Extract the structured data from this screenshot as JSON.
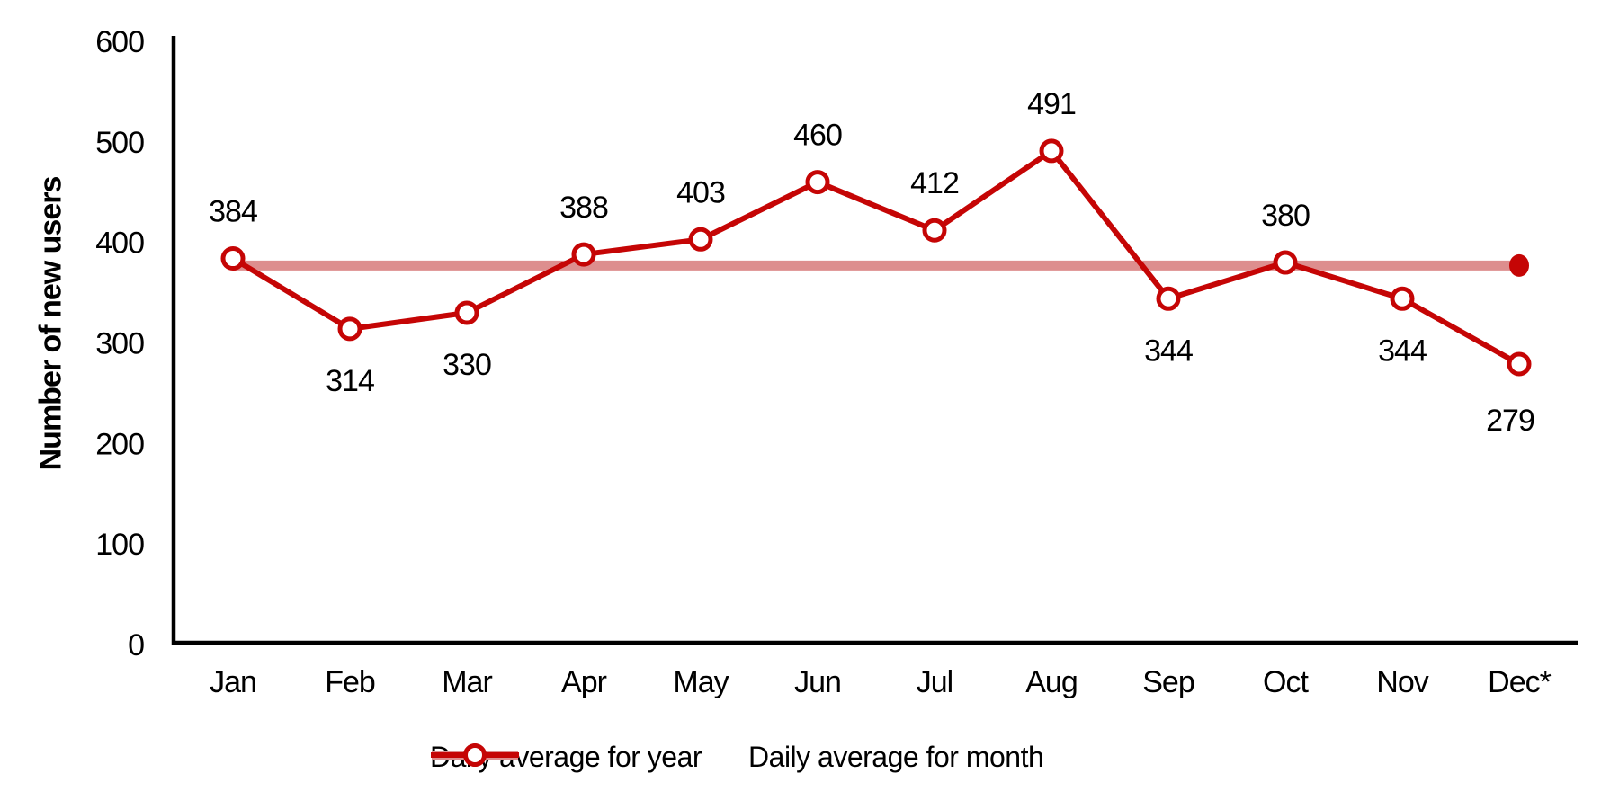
{
  "chart_data": {
    "type": "line",
    "title": "",
    "xlabel": "",
    "ylabel": "Number of new users",
    "categories": [
      "Jan",
      "Feb",
      "Mar",
      "Apr",
      "May",
      "Jun",
      "Jul",
      "Aug",
      "Sep",
      "Oct",
      "Nov",
      "Dec*"
    ],
    "series": [
      {
        "name": "Daily average for year",
        "type": "constant-line",
        "value": 377,
        "color": "#DD8E8E",
        "marker": "filled-dot-at-line-end",
        "marker_color": "#C50505"
      },
      {
        "name": "Daily average for month",
        "type": "line",
        "values": [
          384,
          314,
          330,
          388,
          403,
          460,
          412,
          491,
          344,
          380,
          344,
          279
        ],
        "color": "#C50505",
        "marker": "open-circle",
        "marker_fill": "#FFFFFF"
      }
    ],
    "data_labels": {
      "show": true,
      "positions": [
        "above",
        "below",
        "below",
        "above",
        "above",
        "above",
        "above",
        "above",
        "below",
        "above",
        "below",
        "below"
      ]
    },
    "ylim": [
      0,
      600
    ],
    "yticks": [
      0,
      100,
      200,
      300,
      400,
      500,
      600
    ],
    "grid": false,
    "legend_position": "bottom",
    "axis_color": "#000000",
    "text_color": "#000000",
    "background": "#FFFFFF"
  }
}
